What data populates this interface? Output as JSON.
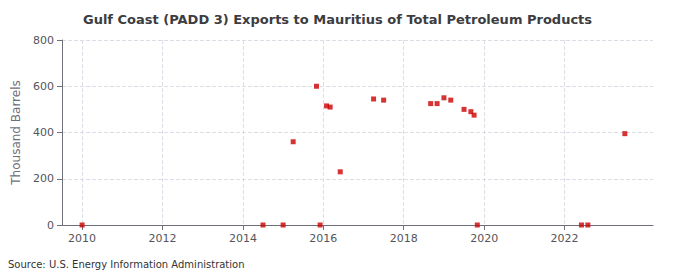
{
  "chart_data": {
    "type": "scatter",
    "title": "Gulf Coast (PADD 3) Exports to Mauritius of Total Petroleum Products",
    "ylabel": "Thousand Barrels",
    "annotation": "Source: U.S. Energy Information Administration",
    "color": "#cc0000",
    "marker": "square",
    "grid": true,
    "xlim": [
      2009.5,
      2024.2
    ],
    "ylim": [
      0,
      800
    ],
    "xticks": [
      2010,
      2012,
      2014,
      2016,
      2018,
      2020,
      2022
    ],
    "yticks": [
      0,
      200,
      400,
      600,
      800
    ],
    "x": [
      2010.0,
      2014.5,
      2015.0,
      2015.25,
      2015.83,
      2015.92,
      2016.08,
      2016.17,
      2016.42,
      2017.25,
      2017.5,
      2018.67,
      2018.83,
      2019.0,
      2019.17,
      2019.5,
      2019.67,
      2019.75,
      2019.83,
      2022.42,
      2022.58,
      2023.5
    ],
    "values": [
      0,
      0,
      0,
      360,
      600,
      0,
      515,
      510,
      230,
      545,
      540,
      525,
      525,
      550,
      540,
      500,
      490,
      475,
      0,
      0,
      0,
      395
    ]
  }
}
